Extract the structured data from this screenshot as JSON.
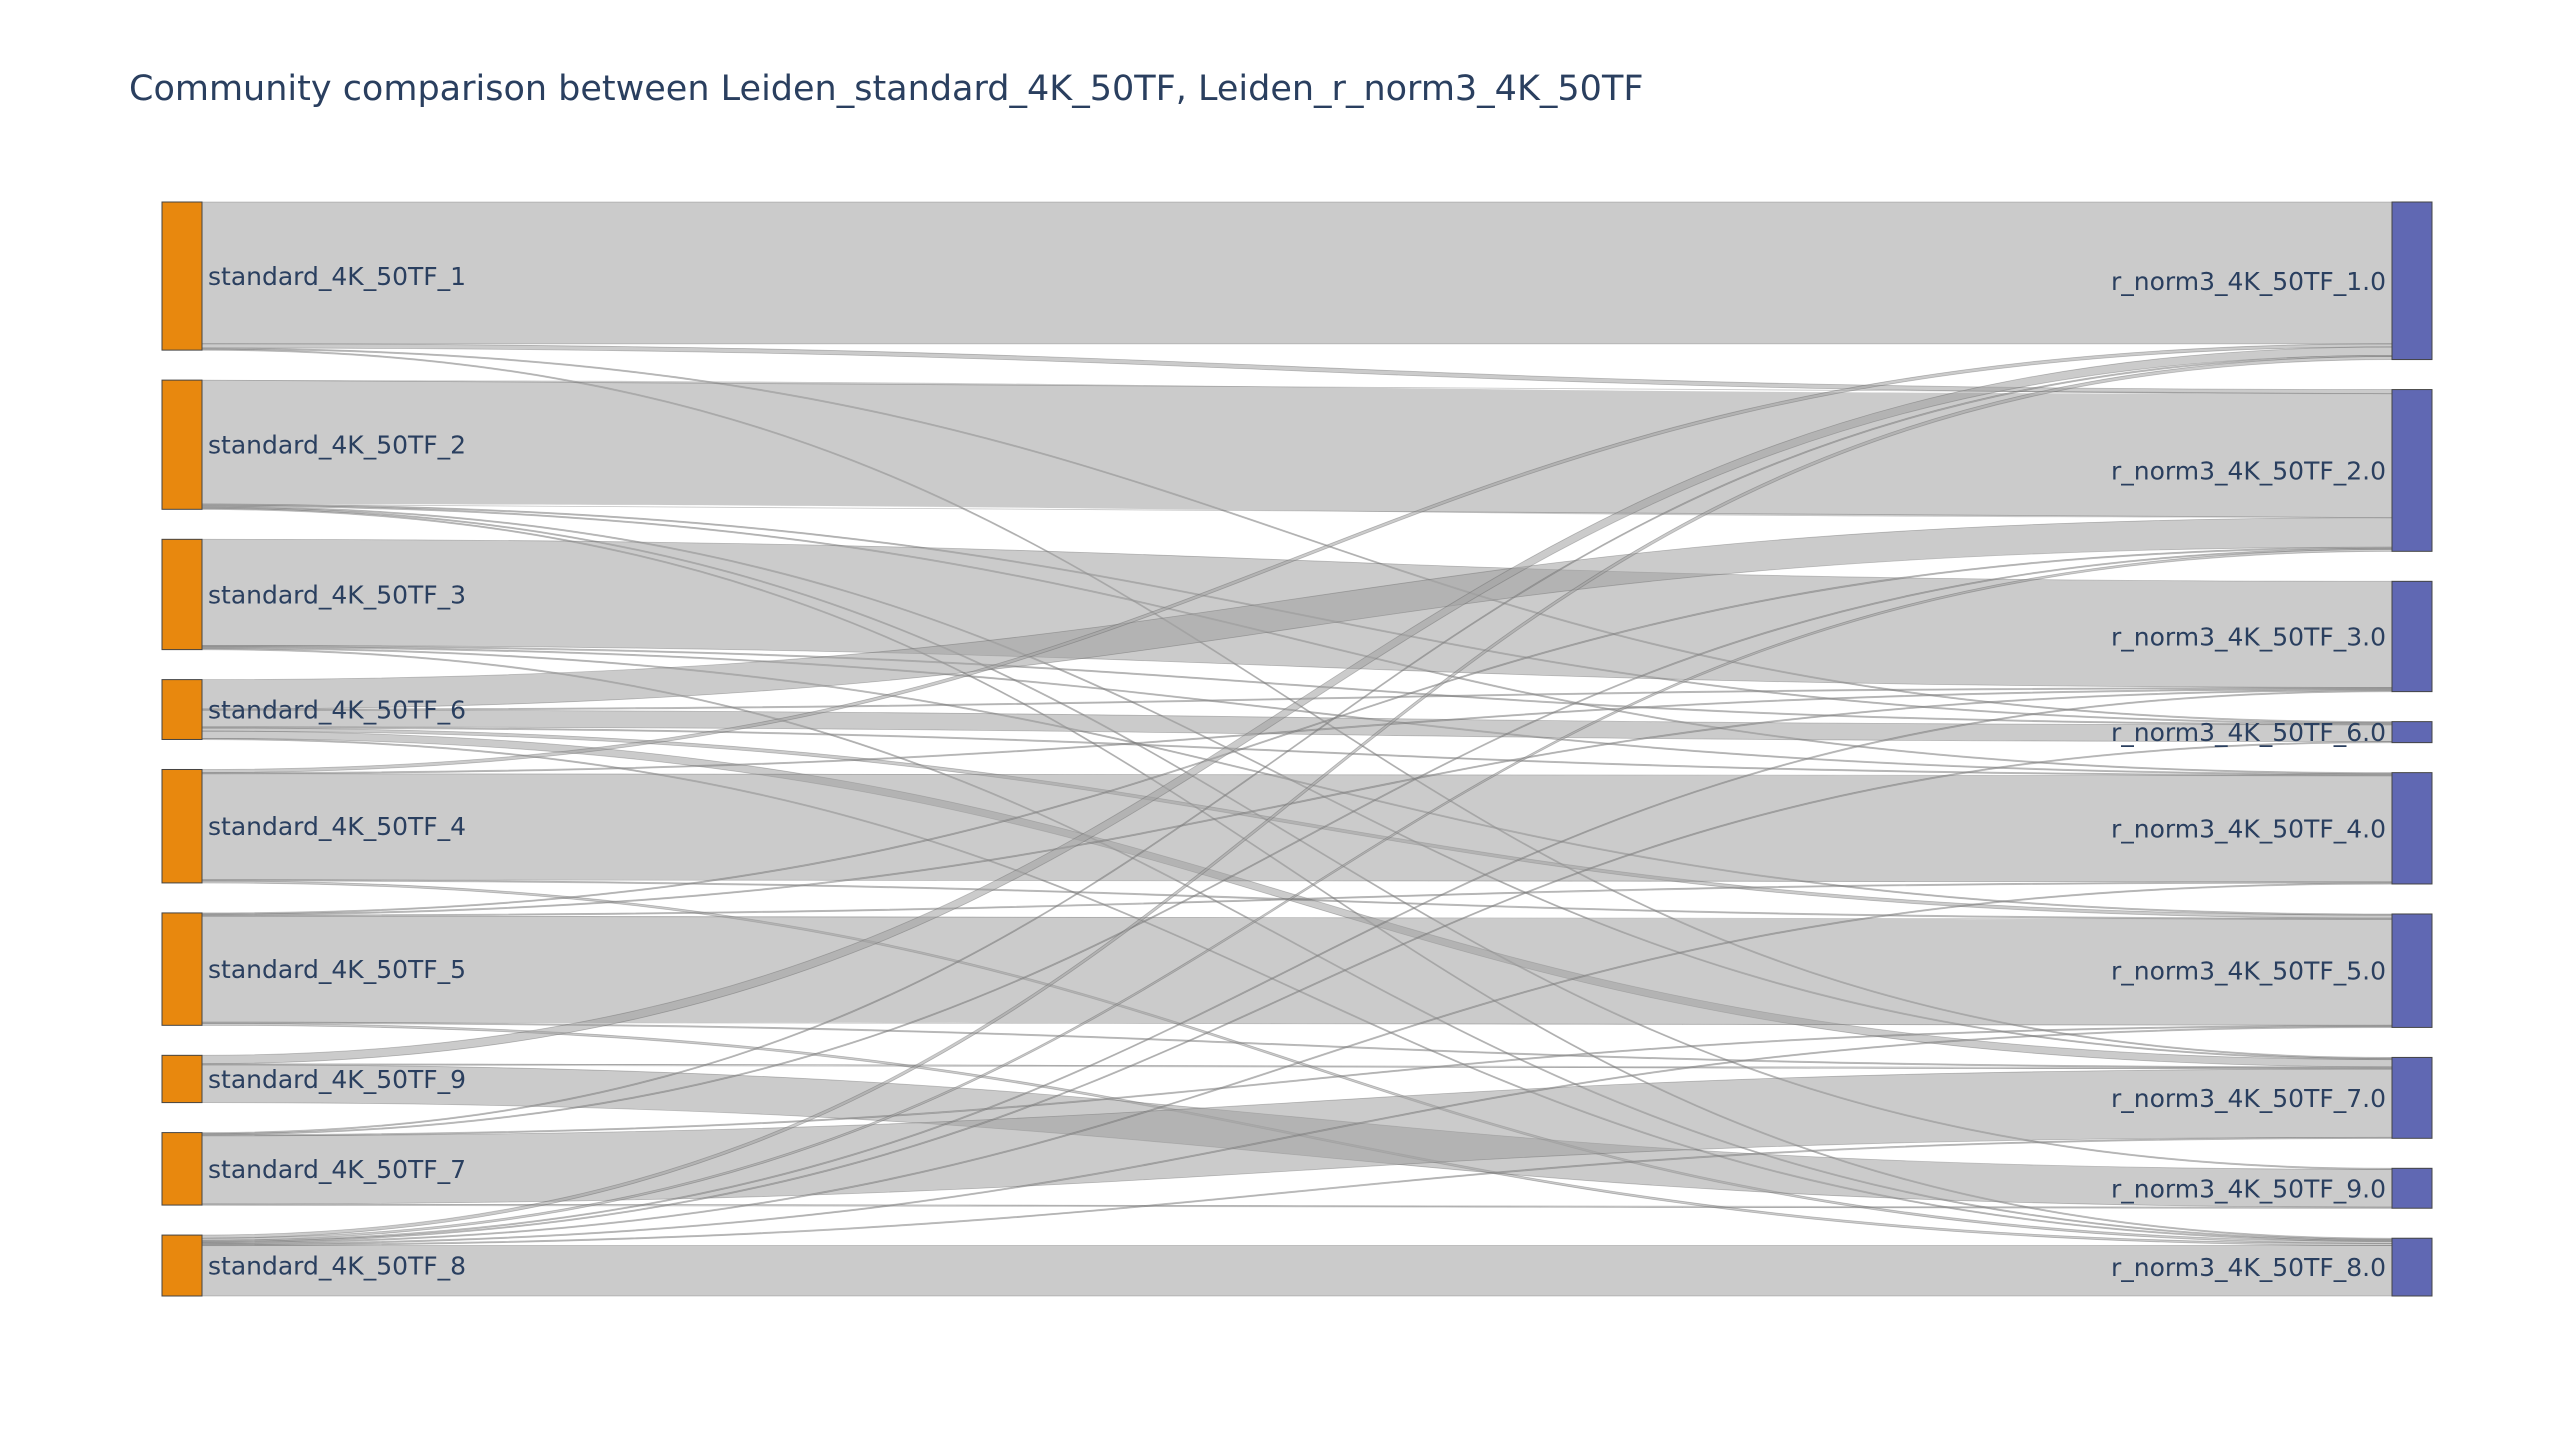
{
  "chart_data": {
    "type": "sankey",
    "title": "Community comparison between Leiden_standard_4K_50TF, Leiden_r_norm3_4K_50TF",
    "colors": {
      "source_node": "#e8880e",
      "target_node": "#6068b3",
      "node_border": "#444444",
      "link": "#a0a0a0",
      "title": "#2a3f5f"
    },
    "sources": [
      {
        "id": "s1",
        "label": "standard_4K_50TF_1"
      },
      {
        "id": "s2",
        "label": "standard_4K_50TF_2"
      },
      {
        "id": "s3",
        "label": "standard_4K_50TF_3"
      },
      {
        "id": "s6",
        "label": "standard_4K_50TF_6"
      },
      {
        "id": "s4",
        "label": "standard_4K_50TF_4"
      },
      {
        "id": "s5",
        "label": "standard_4K_50TF_5"
      },
      {
        "id": "s9",
        "label": "standard_4K_50TF_9"
      },
      {
        "id": "s7",
        "label": "standard_4K_50TF_7"
      },
      {
        "id": "s8",
        "label": "standard_4K_50TF_8"
      }
    ],
    "targets": [
      {
        "id": "t1",
        "label": "r_norm3_4K_50TF_1.0"
      },
      {
        "id": "t2",
        "label": "r_norm3_4K_50TF_2.0"
      },
      {
        "id": "t3",
        "label": "r_norm3_4K_50TF_3.0"
      },
      {
        "id": "t6",
        "label": "r_norm3_4K_50TF_6.0"
      },
      {
        "id": "t4",
        "label": "r_norm3_4K_50TF_4.0"
      },
      {
        "id": "t5",
        "label": "r_norm3_4K_50TF_5.0"
      },
      {
        "id": "t7",
        "label": "r_norm3_4K_50TF_7.0"
      },
      {
        "id": "t9",
        "label": "r_norm3_4K_50TF_9.0"
      },
      {
        "id": "t8",
        "label": "r_norm3_4K_50TF_8.0"
      }
    ],
    "links": [
      {
        "source": "s1",
        "target": "t1",
        "value": 135
      },
      {
        "source": "s1",
        "target": "t2",
        "value": 4
      },
      {
        "source": "s1",
        "target": "t6",
        "value": 1
      },
      {
        "source": "s1",
        "target": "t7",
        "value": 1
      },
      {
        "source": "s2",
        "target": "t2",
        "value": 118
      },
      {
        "source": "s2",
        "target": "t6",
        "value": 1
      },
      {
        "source": "s2",
        "target": "t4",
        "value": 1
      },
      {
        "source": "s2",
        "target": "t7",
        "value": 1
      },
      {
        "source": "s2",
        "target": "t9",
        "value": 1
      },
      {
        "source": "s2",
        "target": "t8",
        "value": 1
      },
      {
        "source": "s3",
        "target": "t3",
        "value": 101
      },
      {
        "source": "s3",
        "target": "t6",
        "value": 1
      },
      {
        "source": "s3",
        "target": "t4",
        "value": 1
      },
      {
        "source": "s3",
        "target": "t5",
        "value": 1
      },
      {
        "source": "s3",
        "target": "t8",
        "value": 1
      },
      {
        "source": "s6",
        "target": "t2",
        "value": 28
      },
      {
        "source": "s6",
        "target": "t3",
        "value": 1
      },
      {
        "source": "s6",
        "target": "t6",
        "value": 16
      },
      {
        "source": "s6",
        "target": "t4",
        "value": 1
      },
      {
        "source": "s6",
        "target": "t5",
        "value": 3
      },
      {
        "source": "s6",
        "target": "t7",
        "value": 7
      },
      {
        "source": "s6",
        "target": "t8",
        "value": 1
      },
      {
        "source": "s4",
        "target": "t1",
        "value": 3
      },
      {
        "source": "s4",
        "target": "t3",
        "value": 1
      },
      {
        "source": "s4",
        "target": "t4",
        "value": 101
      },
      {
        "source": "s4",
        "target": "t5",
        "value": 1
      },
      {
        "source": "s4",
        "target": "t8",
        "value": 2
      },
      {
        "source": "s5",
        "target": "t2",
        "value": 1
      },
      {
        "source": "s5",
        "target": "t3",
        "value": 1
      },
      {
        "source": "s5",
        "target": "t4",
        "value": 1
      },
      {
        "source": "s5",
        "target": "t5",
        "value": 101
      },
      {
        "source": "s5",
        "target": "t7",
        "value": 1
      },
      {
        "source": "s5",
        "target": "t8",
        "value": 2
      },
      {
        "source": "s9",
        "target": "t1",
        "value": 8
      },
      {
        "source": "s9",
        "target": "t7",
        "value": 1
      },
      {
        "source": "s9",
        "target": "t9",
        "value": 36
      },
      {
        "source": "s7",
        "target": "t1",
        "value": 1
      },
      {
        "source": "s7",
        "target": "t2",
        "value": 1
      },
      {
        "source": "s7",
        "target": "t5",
        "value": 1
      },
      {
        "source": "s7",
        "target": "t7",
        "value": 65
      },
      {
        "source": "s7",
        "target": "t9",
        "value": 1
      },
      {
        "source": "s8",
        "target": "t1",
        "value": 3
      },
      {
        "source": "s8",
        "target": "t2",
        "value": 2
      },
      {
        "source": "s8",
        "target": "t3",
        "value": 1
      },
      {
        "source": "s8",
        "target": "t6",
        "value": 1
      },
      {
        "source": "s8",
        "target": "t4",
        "value": 1
      },
      {
        "source": "s8",
        "target": "t5",
        "value": 1
      },
      {
        "source": "s8",
        "target": "t7",
        "value": 1
      },
      {
        "source": "s8",
        "target": "t8",
        "value": 48
      }
    ]
  }
}
